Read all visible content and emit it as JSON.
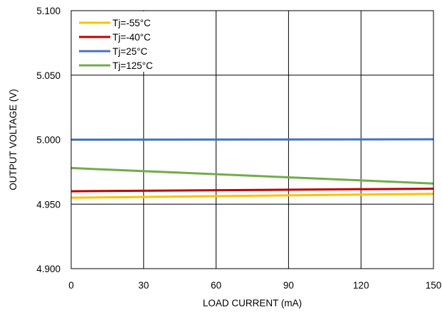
{
  "chart_data": {
    "type": "line",
    "xlabel": "LOAD CURRENT (mA)",
    "ylabel": "OUTPUT VOLTAGE (V)",
    "xlim": [
      0,
      150
    ],
    "ylim": [
      4.9,
      5.1
    ],
    "xticks": [
      0,
      30,
      60,
      90,
      120,
      150
    ],
    "yticks": [
      4.9,
      4.95,
      5.0,
      5.05,
      5.1
    ],
    "xtick_labels": [
      "0",
      "30",
      "60",
      "90",
      "120",
      "150"
    ],
    "ytick_labels": [
      "4.900",
      "4.950",
      "5.000",
      "5.050",
      "5.100"
    ],
    "grid": true,
    "legend_position": "top-left",
    "series": [
      {
        "name": "Tj=-55°C",
        "color": "#ffc000",
        "x": [
          0,
          150
        ],
        "y": [
          4.955,
          4.958
        ]
      },
      {
        "name": "Tj=-40°C",
        "color": "#c00000",
        "x": [
          0,
          150
        ],
        "y": [
          4.96,
          4.962
        ]
      },
      {
        "name": "Tj=25°C",
        "color": "#4472c4",
        "x": [
          0,
          150
        ],
        "y": [
          5.0,
          5.0003
        ]
      },
      {
        "name": "Tj=125°C",
        "color": "#70ad47",
        "x": [
          0,
          150
        ],
        "y": [
          4.978,
          4.966
        ]
      }
    ]
  }
}
